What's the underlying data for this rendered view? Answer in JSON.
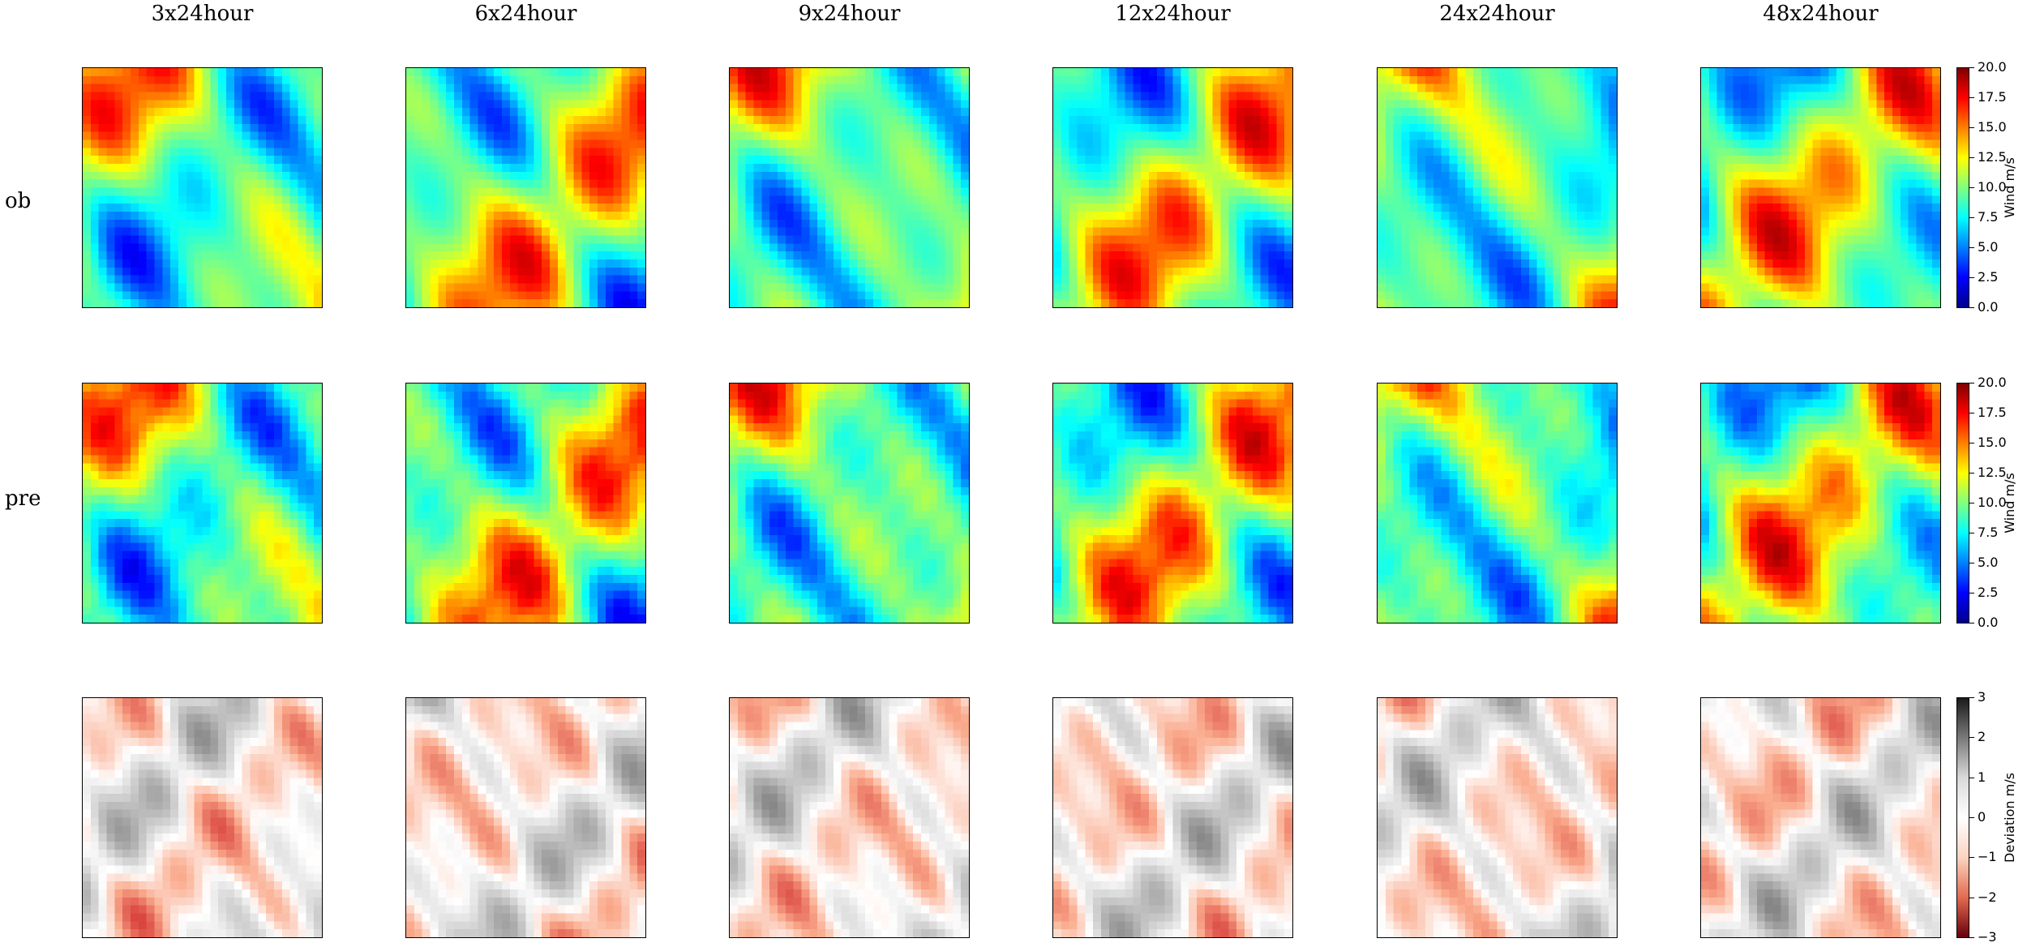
{
  "chart_data": {
    "type": "heatmap",
    "columns": [
      "3x24hour",
      "6x24hour",
      "9x24hour",
      "12x24hour",
      "24x24hour",
      "48x24hour"
    ],
    "rows": [
      "ob",
      "pre",
      ""
    ],
    "colorbars": [
      {
        "label": "Wind m/s",
        "range": [
          0.0,
          20.0
        ],
        "ticks": [
          "20.0",
          "17.5",
          "15.0",
          "12.5",
          "10.0",
          "7.5",
          "5.0",
          "2.5",
          "0.0"
        ],
        "colormap": "jet",
        "applies_to_rows": [
          "ob",
          "pre"
        ]
      },
      {
        "label": "Deviation m/s",
        "range": [
          -3,
          3
        ],
        "ticks": [
          "3",
          "2",
          "1",
          "0",
          "−1",
          "−2",
          "−3"
        ],
        "colormap": "red-white-gray",
        "applies_to_rows": [
          ""
        ]
      }
    ]
  }
}
